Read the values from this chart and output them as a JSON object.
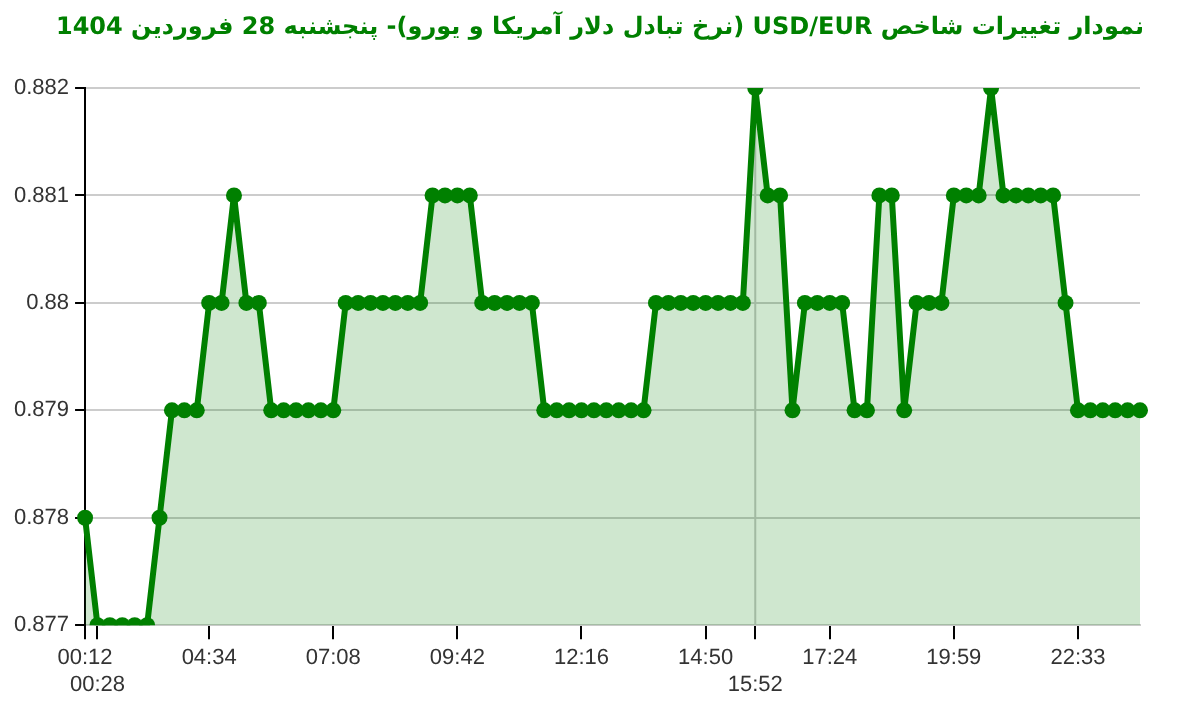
{
  "chart_data": {
    "type": "area",
    "title": "نمودار تغییرات شاخص USD/EUR (نرخ تبادل دلار آمریکا و یورو)- پنجشنبه  28 فروردین 1404",
    "categories": [
      "00:12",
      "00:28",
      null,
      null,
      null,
      null,
      null,
      null,
      null,
      null,
      "04:34",
      null,
      null,
      null,
      null,
      null,
      null,
      null,
      null,
      null,
      "07:08",
      null,
      null,
      null,
      null,
      null,
      null,
      null,
      null,
      null,
      "09:42",
      null,
      null,
      null,
      null,
      null,
      null,
      null,
      null,
      null,
      "12:16",
      null,
      null,
      null,
      null,
      null,
      null,
      null,
      null,
      null,
      "14:50",
      null,
      null,
      null,
      "15:52",
      null,
      null,
      null,
      null,
      null,
      "17:24",
      null,
      null,
      null,
      null,
      null,
      null,
      null,
      null,
      null,
      "19:59",
      null,
      null,
      null,
      null,
      null,
      null,
      null,
      null,
      null,
      "22:33",
      null,
      null,
      null,
      null,
      null
    ],
    "series": [
      {
        "color": "#008000",
        "values": [
          0.878,
          0.877,
          0.877,
          0.877,
          0.877,
          0.877,
          0.878,
          0.879,
          0.879,
          0.879,
          0.88,
          0.88,
          0.881,
          0.88,
          0.88,
          0.879,
          0.879,
          0.879,
          0.879,
          0.879,
          0.879,
          0.88,
          0.88,
          0.88,
          0.88,
          0.88,
          0.88,
          0.88,
          0.881,
          0.881,
          0.881,
          0.881,
          0.88,
          0.88,
          0.88,
          0.88,
          0.88,
          0.879,
          0.879,
          0.879,
          0.879,
          0.879,
          0.879,
          0.879,
          0.879,
          0.879,
          0.88,
          0.88,
          0.88,
          0.88,
          0.88,
          0.88,
          0.88,
          0.88,
          0.882,
          0.881,
          0.881,
          0.879,
          0.88,
          0.88,
          0.88,
          0.88,
          0.879,
          0.879,
          0.881,
          0.881,
          0.879,
          0.88,
          0.88,
          0.88,
          0.881,
          0.881,
          0.881,
          0.882,
          0.881,
          0.881,
          0.881,
          0.881,
          0.881,
          0.88,
          0.879,
          0.879,
          0.879,
          0.879,
          0.879,
          0.879
        ]
      }
    ],
    "ylim": [
      0.877,
      0.882
    ],
    "yticks": [
      0.877,
      0.878,
      0.879,
      0.88,
      0.881,
      0.882
    ],
    "ref_lines": [
      {
        "axis": "x",
        "value": "15:52",
        "color": "#c8c8c8"
      }
    ],
    "grid": "y",
    "marker": "circle",
    "legend": false
  }
}
